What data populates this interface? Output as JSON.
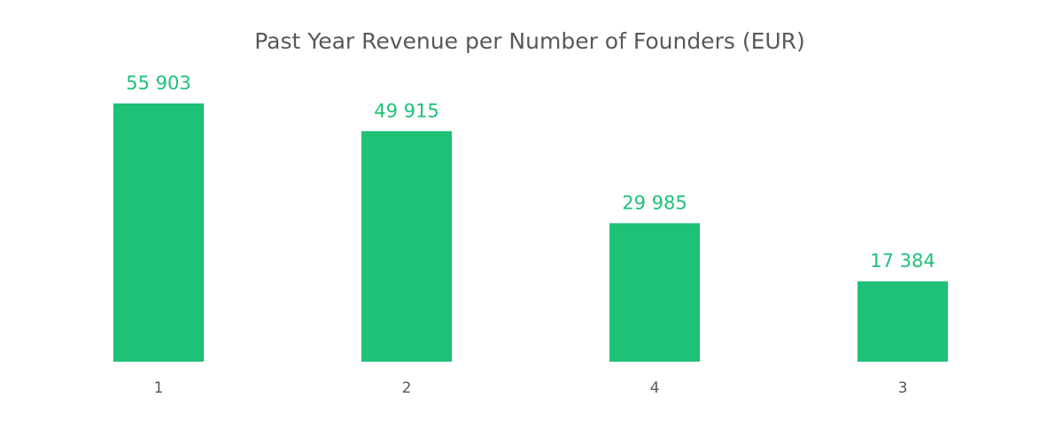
{
  "chart_data": {
    "type": "bar",
    "title": "Past Year Revenue per Number of Founders (EUR)",
    "categories": [
      "1",
      "2",
      "4",
      "3"
    ],
    "values": [
      55903,
      49915,
      29985,
      17384
    ],
    "value_labels": [
      "55 903",
      "49 915",
      "29 985",
      "17 384"
    ],
    "color": "#1fc177"
  }
}
